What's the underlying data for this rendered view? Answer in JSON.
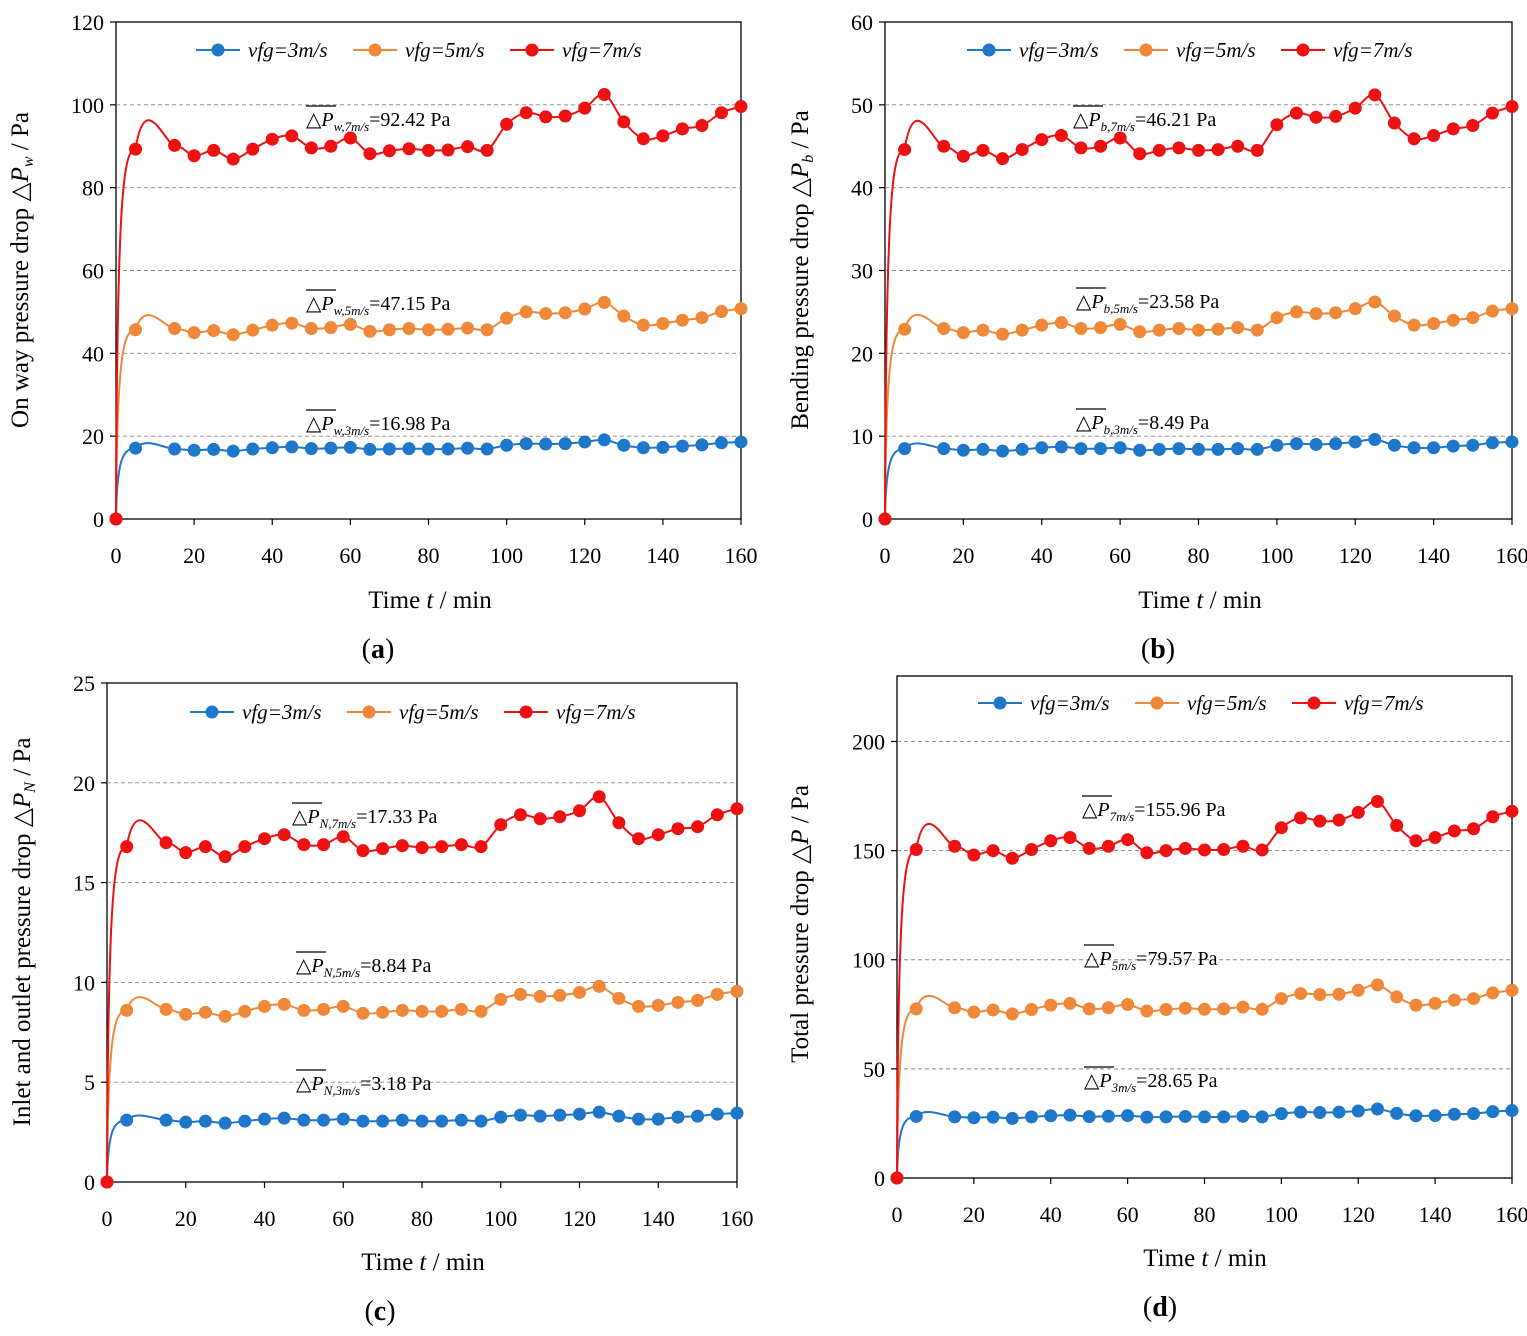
{
  "x_common": [
    0,
    5,
    15,
    20,
    25,
    30,
    35,
    40,
    45,
    50,
    55,
    60,
    65,
    70,
    75,
    80,
    85,
    90,
    95,
    100,
    105,
    110,
    115,
    120,
    125,
    130,
    135,
    140,
    145,
    150,
    155,
    160
  ],
  "colors": {
    "blue": "#1f77c9",
    "orange": "#f0883a",
    "red": "#ee1111"
  },
  "chart_data": [
    {
      "id": "a",
      "type": "line",
      "caption": "(a)",
      "xlabel": {
        "pre": "Time ",
        "it": "t",
        "post": " / min"
      },
      "ylabel": {
        "pre": "On way pressure drop ",
        "sym": "△P",
        "sub": "w",
        "post": " / Pa"
      },
      "xlim": [
        0,
        160
      ],
      "ylim": [
        0,
        120
      ],
      "xticks": [
        0,
        20,
        40,
        60,
        80,
        100,
        120,
        140,
        160
      ],
      "yticks": [
        0,
        20,
        40,
        60,
        80,
        100,
        120
      ],
      "grid_y": [
        20,
        40,
        60,
        80,
        100
      ],
      "legend": [
        "vfg=3m/s",
        "vfg=5m/s",
        "vfg=7m/s"
      ],
      "series": [
        {
          "name": "vfg=3m/s",
          "values": [
            0,
            17.1,
            16.9,
            16.6,
            16.8,
            16.4,
            16.9,
            17.2,
            17.4,
            17.0,
            17.1,
            17.3,
            16.8,
            16.9,
            17.0,
            16.9,
            16.9,
            17.1,
            16.9,
            17.8,
            18.2,
            18.1,
            18.2,
            18.6,
            19.1,
            17.8,
            17.2,
            17.3,
            17.6,
            17.9,
            18.4,
            18.6
          ]
        },
        {
          "name": "vfg=5m/s",
          "values": [
            0,
            45.7,
            46.0,
            45.0,
            45.5,
            44.5,
            45.6,
            46.8,
            47.3,
            46.0,
            46.2,
            47.0,
            45.3,
            45.7,
            46.0,
            45.7,
            45.8,
            46.1,
            45.7,
            48.5,
            50.0,
            49.6,
            49.8,
            50.7,
            52.3,
            49.0,
            46.8,
            47.2,
            48.0,
            48.6,
            50.1,
            50.8
          ]
        },
        {
          "name": "vfg=7m/s",
          "values": [
            0,
            89.3,
            90.2,
            87.7,
            89.0,
            86.9,
            89.3,
            91.7,
            92.5,
            89.6,
            90.0,
            92.0,
            88.2,
            88.9,
            89.4,
            89.0,
            89.1,
            89.9,
            89.0,
            95.3,
            98.1,
            97.1,
            97.3,
            99.2,
            102.5,
            95.9,
            91.8,
            92.5,
            94.2,
            95.0,
            98.1,
            99.6
          ]
        }
      ],
      "annotations": [
        {
          "pre": "△P",
          "sub": "w,7m/s",
          "post": "=92.42 Pa"
        },
        {
          "pre": "△P",
          "sub": "w,5m/s",
          "post": "=47.15 Pa"
        },
        {
          "pre": "△P",
          "sub": "w,3m/s",
          "post": "=16.98 Pa"
        }
      ]
    },
    {
      "id": "b",
      "type": "line",
      "caption": "(b)",
      "xlabel": {
        "pre": "Time ",
        "it": "t",
        "post": " / min"
      },
      "ylabel": {
        "pre": "Bending pressure drop ",
        "sym": "△P",
        "sub": "b",
        "post": " / Pa"
      },
      "xlim": [
        0,
        160
      ],
      "ylim": [
        0,
        60
      ],
      "xticks": [
        0,
        20,
        40,
        60,
        80,
        100,
        120,
        140,
        160
      ],
      "yticks": [
        0,
        10,
        20,
        30,
        40,
        50,
        60
      ],
      "grid_y": [
        10,
        20,
        30,
        40,
        50
      ],
      "legend": [
        "vfg=3m/s",
        "vfg=5m/s",
        "vfg=7m/s"
      ],
      "series": [
        {
          "name": "vfg=3m/s",
          "values": [
            0,
            8.5,
            8.5,
            8.3,
            8.4,
            8.2,
            8.4,
            8.6,
            8.7,
            8.5,
            8.5,
            8.6,
            8.3,
            8.4,
            8.5,
            8.4,
            8.4,
            8.5,
            8.4,
            8.9,
            9.1,
            9.0,
            9.1,
            9.3,
            9.6,
            8.9,
            8.6,
            8.6,
            8.8,
            8.9,
            9.2,
            9.3
          ]
        },
        {
          "name": "vfg=5m/s",
          "values": [
            0,
            22.9,
            23.0,
            22.5,
            22.8,
            22.3,
            22.8,
            23.4,
            23.7,
            23.0,
            23.1,
            23.5,
            22.6,
            22.8,
            23.0,
            22.8,
            22.9,
            23.1,
            22.8,
            24.3,
            25.0,
            24.8,
            24.9,
            25.4,
            26.2,
            24.5,
            23.4,
            23.6,
            24.0,
            24.3,
            25.1,
            25.4
          ]
        },
        {
          "name": "vfg=7m/s",
          "values": [
            0,
            44.6,
            45.0,
            43.8,
            44.5,
            43.5,
            44.6,
            45.8,
            46.3,
            44.8,
            45.0,
            46.0,
            44.1,
            44.5,
            44.8,
            44.5,
            44.6,
            45.0,
            44.5,
            47.6,
            49.0,
            48.5,
            48.6,
            49.6,
            51.2,
            47.8,
            45.9,
            46.3,
            47.1,
            47.5,
            49.0,
            49.8
          ]
        }
      ],
      "annotations": [
        {
          "pre": "△P",
          "sub": "b,7m/s",
          "post": "=46.21 Pa"
        },
        {
          "pre": "△P",
          "sub": "b,5m/s",
          "post": "=23.58 Pa"
        },
        {
          "pre": "△P",
          "sub": "b,3m/s",
          "post": "=8.49 Pa"
        }
      ]
    },
    {
      "id": "c",
      "type": "line",
      "caption": "(c)",
      "xlabel": {
        "pre": "Time ",
        "it": "t",
        "post": " / min"
      },
      "ylabel": {
        "pre": "Inlet and outlet pressure drop ",
        "sym": "△P",
        "sub": "N",
        "post": " / Pa"
      },
      "xlim": [
        0,
        160
      ],
      "ylim": [
        0,
        25
      ],
      "xticks": [
        0,
        20,
        40,
        60,
        80,
        100,
        120,
        140,
        160
      ],
      "yticks": [
        0,
        5,
        10,
        15,
        20,
        25
      ],
      "grid_y": [
        5,
        10,
        15,
        20
      ],
      "legend": [
        "vfg=3m/s",
        "vfg=5m/s",
        "vfg=7m/s"
      ],
      "series": [
        {
          "name": "vfg=3m/s",
          "values": [
            0,
            3.1,
            3.1,
            3.0,
            3.05,
            2.95,
            3.05,
            3.15,
            3.2,
            3.1,
            3.1,
            3.15,
            3.05,
            3.05,
            3.1,
            3.05,
            3.05,
            3.1,
            3.05,
            3.25,
            3.35,
            3.3,
            3.35,
            3.4,
            3.5,
            3.3,
            3.15,
            3.15,
            3.25,
            3.3,
            3.4,
            3.45
          ]
        },
        {
          "name": "vfg=5m/s",
          "values": [
            0,
            8.6,
            8.65,
            8.4,
            8.5,
            8.3,
            8.55,
            8.8,
            8.9,
            8.6,
            8.65,
            8.8,
            8.45,
            8.5,
            8.6,
            8.55,
            8.55,
            8.65,
            8.55,
            9.15,
            9.4,
            9.3,
            9.35,
            9.5,
            9.8,
            9.2,
            8.8,
            8.85,
            9.0,
            9.1,
            9.4,
            9.55
          ]
        },
        {
          "name": "vfg=7m/s",
          "values": [
            0,
            16.8,
            17.0,
            16.5,
            16.8,
            16.3,
            16.8,
            17.2,
            17.4,
            16.9,
            16.9,
            17.3,
            16.6,
            16.7,
            16.85,
            16.75,
            16.8,
            16.9,
            16.8,
            17.9,
            18.4,
            18.2,
            18.3,
            18.6,
            19.3,
            18.0,
            17.2,
            17.4,
            17.7,
            17.8,
            18.4,
            18.7
          ]
        }
      ],
      "annotations": [
        {
          "pre": "△P",
          "sub": "N,7m/s",
          "post": "=17.33 Pa"
        },
        {
          "pre": "△P",
          "sub": "N,5m/s",
          "post": "=8.84 Pa"
        },
        {
          "pre": "△P",
          "sub": "N,3m/s",
          "post": "=3.18 Pa"
        }
      ]
    },
    {
      "id": "d",
      "type": "line",
      "caption": "(d)",
      "xlabel": {
        "pre": "Time ",
        "it": "t",
        "post": " / min"
      },
      "ylabel": {
        "pre": "Total pressure drop ",
        "sym": "△P",
        "sub": "",
        "post": " / Pa"
      },
      "xlim": [
        0,
        160
      ],
      "ylim": [
        0,
        230
      ],
      "xticks": [
        0,
        20,
        40,
        60,
        80,
        100,
        120,
        140,
        160
      ],
      "yticks": [
        0,
        50,
        100,
        150,
        200
      ],
      "grid_y": [
        50,
        100,
        150,
        200
      ],
      "legend": [
        "vfg=3m/s",
        "vfg=5m/s",
        "vfg=7m/s"
      ],
      "series": [
        {
          "name": "vfg=3m/s",
          "values": [
            0,
            28.2,
            28.0,
            27.6,
            27.9,
            27.3,
            28.0,
            28.5,
            28.8,
            28.1,
            28.3,
            28.6,
            27.9,
            28.0,
            28.2,
            28.0,
            28.0,
            28.3,
            28.0,
            29.5,
            30.2,
            30.0,
            30.2,
            30.7,
            31.6,
            29.6,
            28.5,
            28.6,
            29.2,
            29.5,
            30.4,
            30.9
          ]
        },
        {
          "name": "vfg=5m/s",
          "values": [
            0,
            77.5,
            78.0,
            76.0,
            77.0,
            75.2,
            77.2,
            79.2,
            80.0,
            77.5,
            78.0,
            79.5,
            76.5,
            77.2,
            77.8,
            77.3,
            77.5,
            78.3,
            77.3,
            82.2,
            84.5,
            84.0,
            84.2,
            86.0,
            88.5,
            83.0,
            79.2,
            80.0,
            81.5,
            82.2,
            84.8,
            86.0
          ]
        },
        {
          "name": "vfg=7m/s",
          "values": [
            0,
            150.5,
            152.0,
            148.0,
            150.0,
            146.5,
            150.5,
            154.5,
            156.0,
            151.0,
            152.0,
            155.0,
            149.0,
            150.0,
            151.0,
            150.3,
            150.5,
            152.0,
            150.3,
            160.5,
            165.0,
            163.5,
            164.0,
            167.5,
            172.5,
            161.5,
            154.5,
            156.0,
            159.0,
            160.0,
            165.5,
            168.0
          ]
        }
      ],
      "annotations": [
        {
          "pre": "△P",
          "sub": "7m/s",
          "post": "=155.96 Pa"
        },
        {
          "pre": "△P",
          "sub": "5m/s",
          "post": "=79.57 Pa"
        },
        {
          "pre": "△P",
          "sub": "3m/s",
          "post": "=28.65 Pa"
        }
      ]
    }
  ]
}
